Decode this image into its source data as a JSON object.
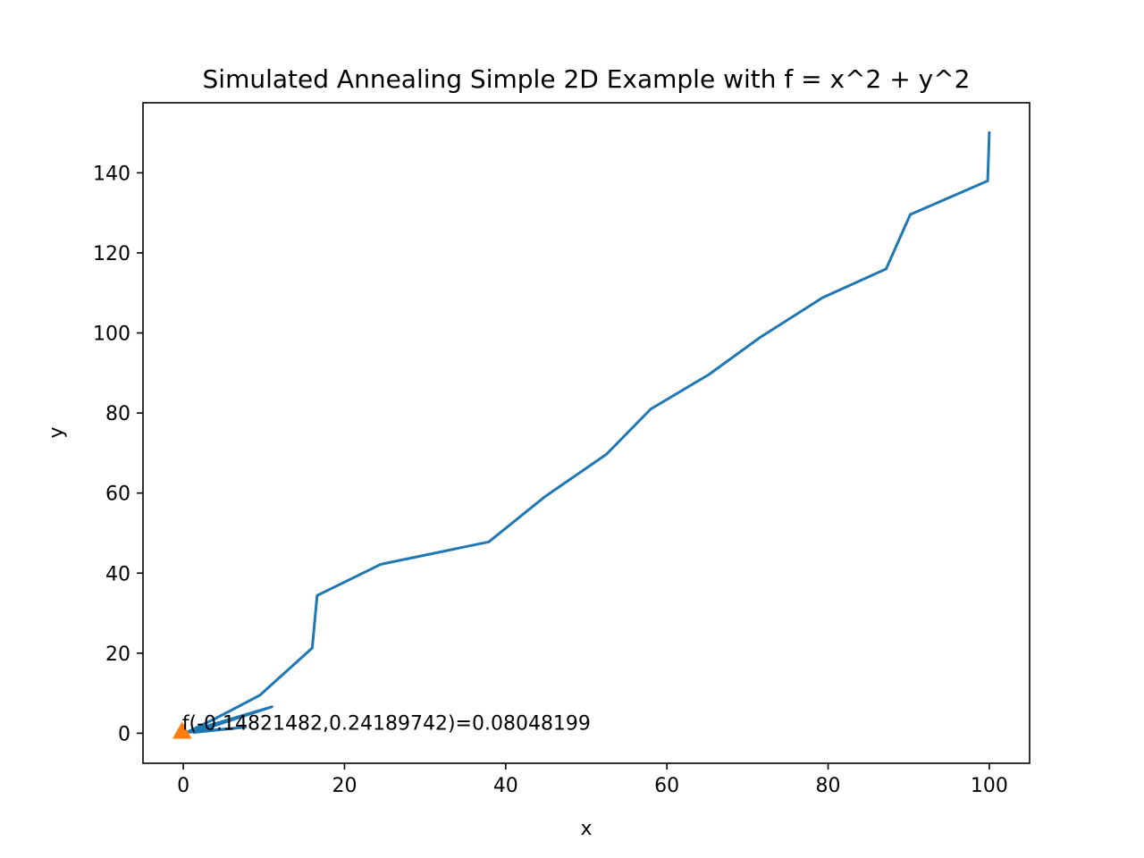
{
  "chart_data": {
    "type": "line",
    "title": "Simulated Annealing Simple 2D Example with f = x^2 + y^2",
    "xlabel": "x",
    "ylabel": "y",
    "xlim": [
      -5,
      105
    ],
    "ylim": [
      -7.5,
      157.5
    ],
    "xticks": [
      0,
      20,
      40,
      60,
      80,
      100
    ],
    "yticks": [
      0,
      20,
      40,
      60,
      80,
      100,
      120,
      140
    ],
    "xtick_labels": [
      "0",
      "20",
      "40",
      "60",
      "80",
      "100"
    ],
    "ytick_labels": [
      "0",
      "20",
      "40",
      "60",
      "80",
      "100",
      "120",
      "140"
    ],
    "grid": false,
    "legend": "none",
    "series": [
      {
        "color": "#1f77b4",
        "points": [
          [
            100,
            150
          ],
          [
            99.8,
            138
          ],
          [
            90.2,
            129.6
          ],
          [
            87.2,
            116
          ],
          [
            79.3,
            108.8
          ],
          [
            71.5,
            98.8
          ],
          [
            65.2,
            89.6
          ],
          [
            58,
            81
          ],
          [
            52.5,
            69.7
          ],
          [
            44.8,
            59
          ],
          [
            37.9,
            47.8
          ],
          [
            24.5,
            42.2
          ],
          [
            16.6,
            34.4
          ],
          [
            16,
            21.3
          ],
          [
            9.5,
            9.5
          ],
          [
            4.1,
            3.8
          ],
          [
            0.6,
            0.4
          ],
          [
            11,
            6.6
          ],
          [
            1.3,
            0.2
          ],
          [
            7.7,
            1.5
          ],
          [
            0.8,
            0.3
          ],
          [
            -0.14821482,
            0.24189742
          ]
        ]
      }
    ],
    "best_point": {
      "x": -0.14821482,
      "y": 0.24189742,
      "color": "#ff7f0e",
      "marker": "triangle-up"
    },
    "annotation": {
      "text": "f(-0.14821482,0.24189742)=0.08048199",
      "x": -0.14821482,
      "y": 0.24189742
    }
  }
}
